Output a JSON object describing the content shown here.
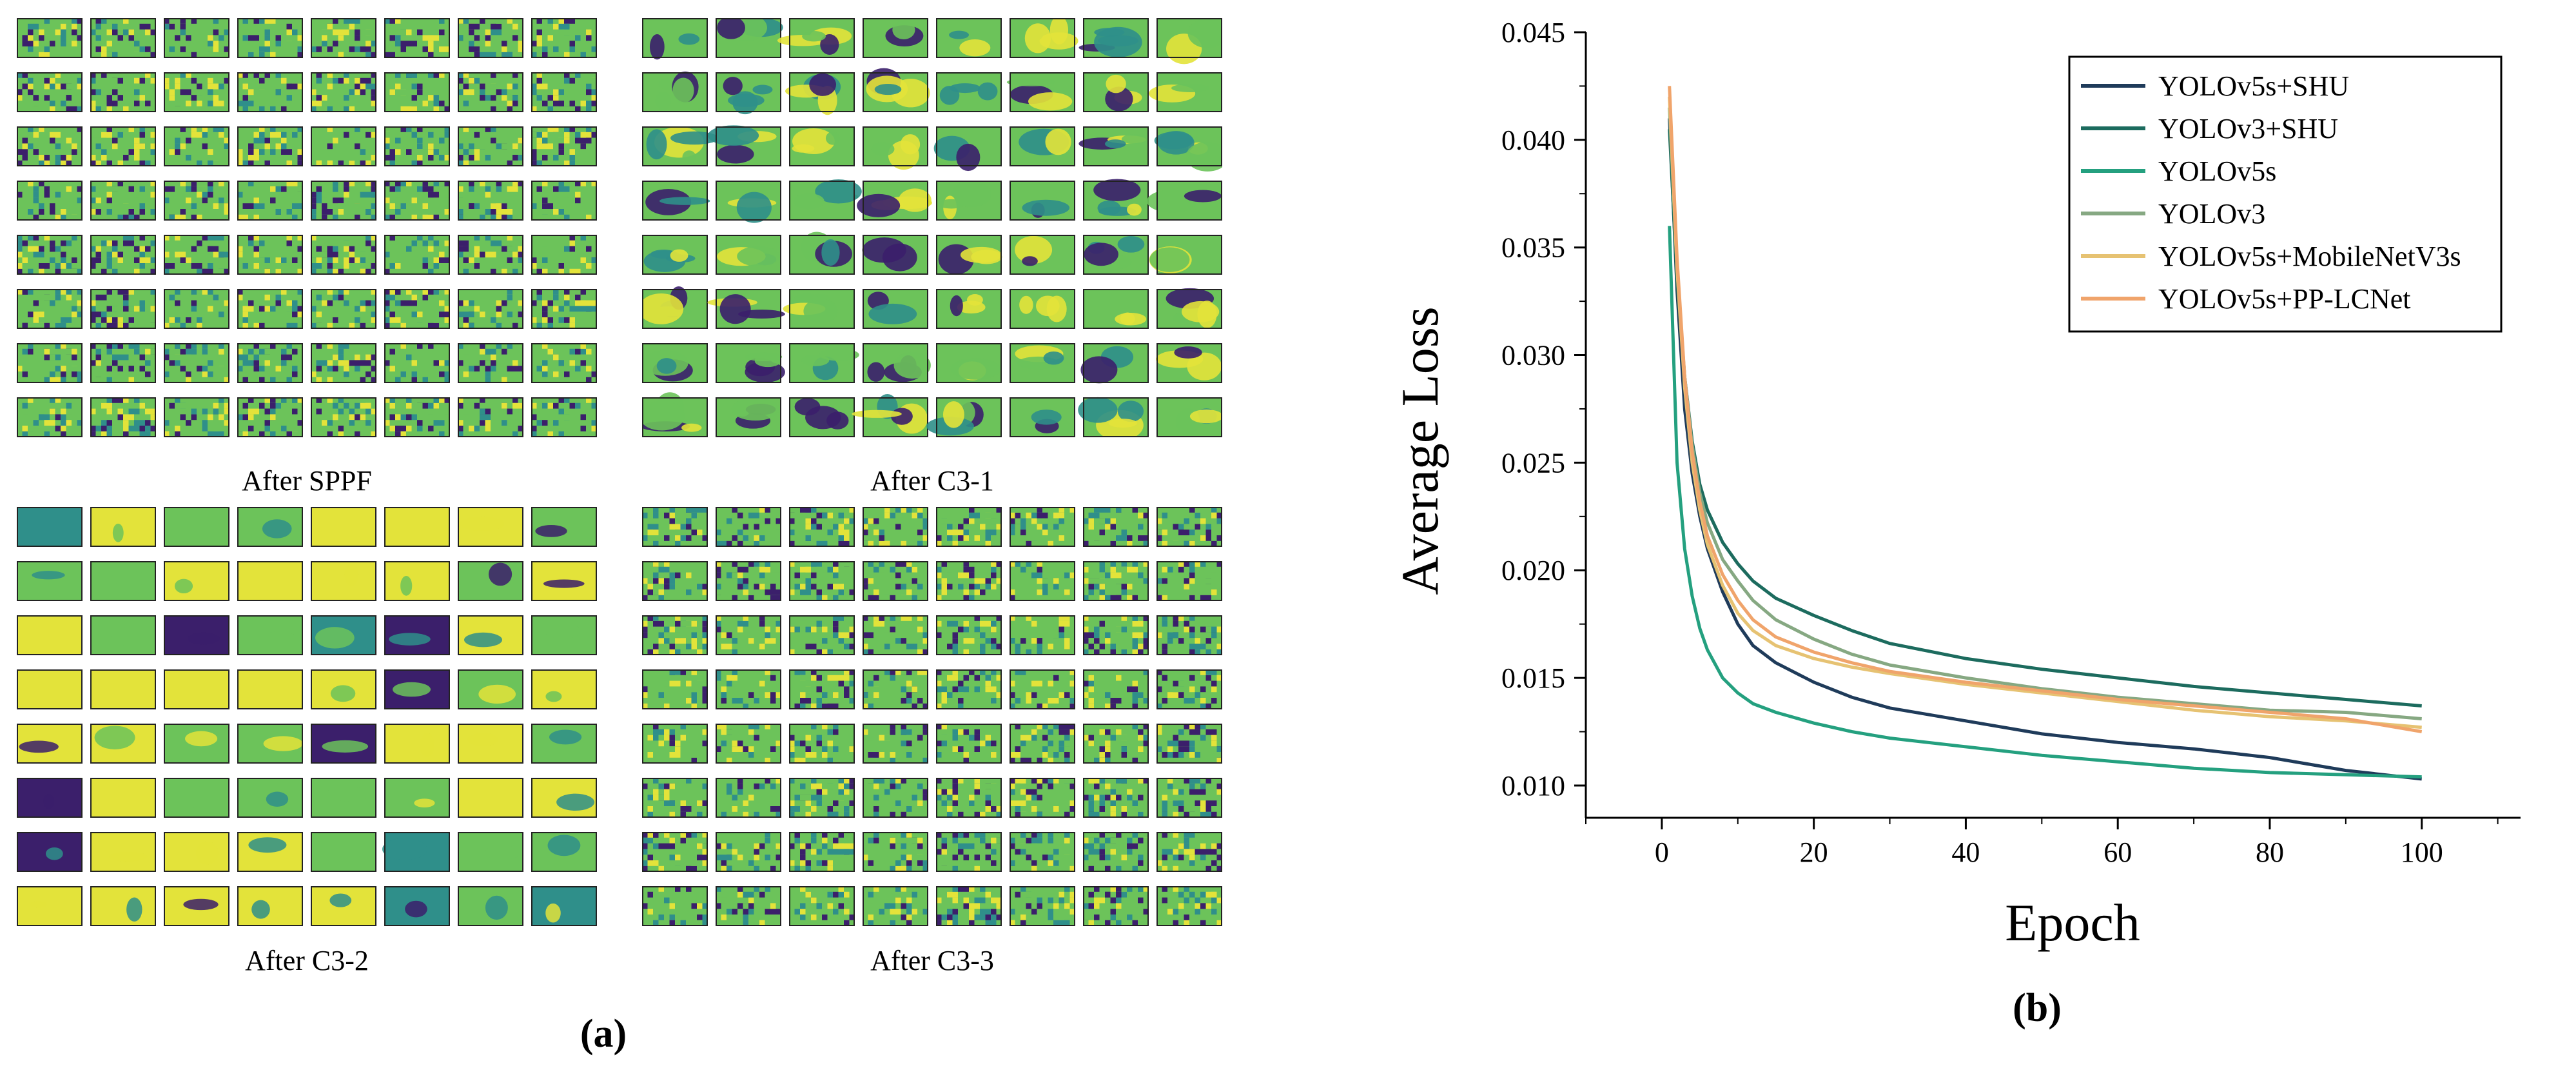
{
  "panel_a": {
    "label": "(a)",
    "grids": [
      {
        "title": "After SPPF",
        "style": "noisy"
      },
      {
        "title": "After C3-1",
        "style": "blob"
      },
      {
        "title": "After C3-2",
        "style": "smooth"
      },
      {
        "title": "After C3-3",
        "style": "noisy"
      }
    ],
    "grid_rows": 8,
    "grid_cols": 8
  },
  "panel_b": {
    "label": "(b)"
  },
  "colors": {
    "YOLOv5s+SHU": "#1f3b5a",
    "YOLOv3+SHU": "#1c6b5e",
    "YOLOv5s": "#24a07f",
    "YOLOv3": "#86a882",
    "YOLOv5s+MobileNetV3s": "#e6c272",
    "YOLOv5s+PP-LCNet": "#f0a46b",
    "viridis_dark": "#3b1f6b",
    "viridis_mid": "#2f8f8a",
    "viridis_green": "#6cc35a",
    "viridis_yellow": "#e3e33a"
  },
  "chart_data": {
    "type": "line",
    "title": "",
    "xlabel": "Epoch",
    "ylabel": "Average Loss",
    "xlim": [
      -10,
      113
    ],
    "ylim": [
      0.0085,
      0.045
    ],
    "xticks": [
      0,
      20,
      40,
      60,
      80,
      100
    ],
    "xtick_labels": [
      "0",
      "20",
      "40",
      "60",
      "80",
      "100"
    ],
    "yticks": [
      0.01,
      0.015,
      0.02,
      0.025,
      0.03,
      0.035,
      0.04,
      0.045
    ],
    "ytick_labels": [
      "0.010",
      "0.015",
      "0.020",
      "0.025",
      "0.030",
      "0.035",
      "0.040",
      "0.045"
    ],
    "grid": false,
    "legend_position": "top-right",
    "x": [
      1,
      2,
      3,
      4,
      5,
      6,
      8,
      10,
      12,
      15,
      20,
      25,
      30,
      40,
      50,
      60,
      70,
      80,
      90,
      100
    ],
    "series": [
      {
        "name": "YOLOv5s+SHU",
        "values": [
          0.041,
          0.033,
          0.0275,
          0.0245,
          0.0225,
          0.021,
          0.019,
          0.0175,
          0.0165,
          0.0157,
          0.0148,
          0.0141,
          0.0136,
          0.013,
          0.0124,
          0.012,
          0.0117,
          0.0113,
          0.0107,
          0.0103
        ]
      },
      {
        "name": "YOLOv3+SHU",
        "values": [
          0.0405,
          0.0335,
          0.029,
          0.026,
          0.024,
          0.0228,
          0.0213,
          0.0203,
          0.0195,
          0.0187,
          0.0179,
          0.0172,
          0.0166,
          0.0159,
          0.0154,
          0.015,
          0.0146,
          0.0143,
          0.014,
          0.0137
        ]
      },
      {
        "name": "YOLOv5s",
        "values": [
          0.036,
          0.025,
          0.021,
          0.0188,
          0.0173,
          0.0163,
          0.015,
          0.0143,
          0.0138,
          0.0134,
          0.0129,
          0.0125,
          0.0122,
          0.0118,
          0.0114,
          0.0111,
          0.0108,
          0.0106,
          0.0105,
          0.0104
        ]
      },
      {
        "name": "YOLOv3",
        "values": [
          0.0415,
          0.034,
          0.029,
          0.0258,
          0.0236,
          0.0222,
          0.0205,
          0.0195,
          0.0186,
          0.0177,
          0.0168,
          0.0161,
          0.0156,
          0.015,
          0.0145,
          0.0141,
          0.0138,
          0.0135,
          0.0134,
          0.0131
        ]
      },
      {
        "name": "YOLOv5s+MobileNetV3s",
        "values": [
          0.042,
          0.034,
          0.0285,
          0.025,
          0.0228,
          0.0212,
          0.0193,
          0.018,
          0.0172,
          0.0165,
          0.0159,
          0.0155,
          0.0152,
          0.0147,
          0.0143,
          0.0139,
          0.0135,
          0.0132,
          0.013,
          0.0127
        ]
      },
      {
        "name": "YOLOv5s+PP-LCNet",
        "values": [
          0.0425,
          0.0345,
          0.029,
          0.0255,
          0.0232,
          0.0216,
          0.0198,
          0.0186,
          0.0177,
          0.0169,
          0.0162,
          0.0157,
          0.0153,
          0.0148,
          0.0144,
          0.014,
          0.0137,
          0.0134,
          0.0131,
          0.0125
        ]
      }
    ]
  }
}
